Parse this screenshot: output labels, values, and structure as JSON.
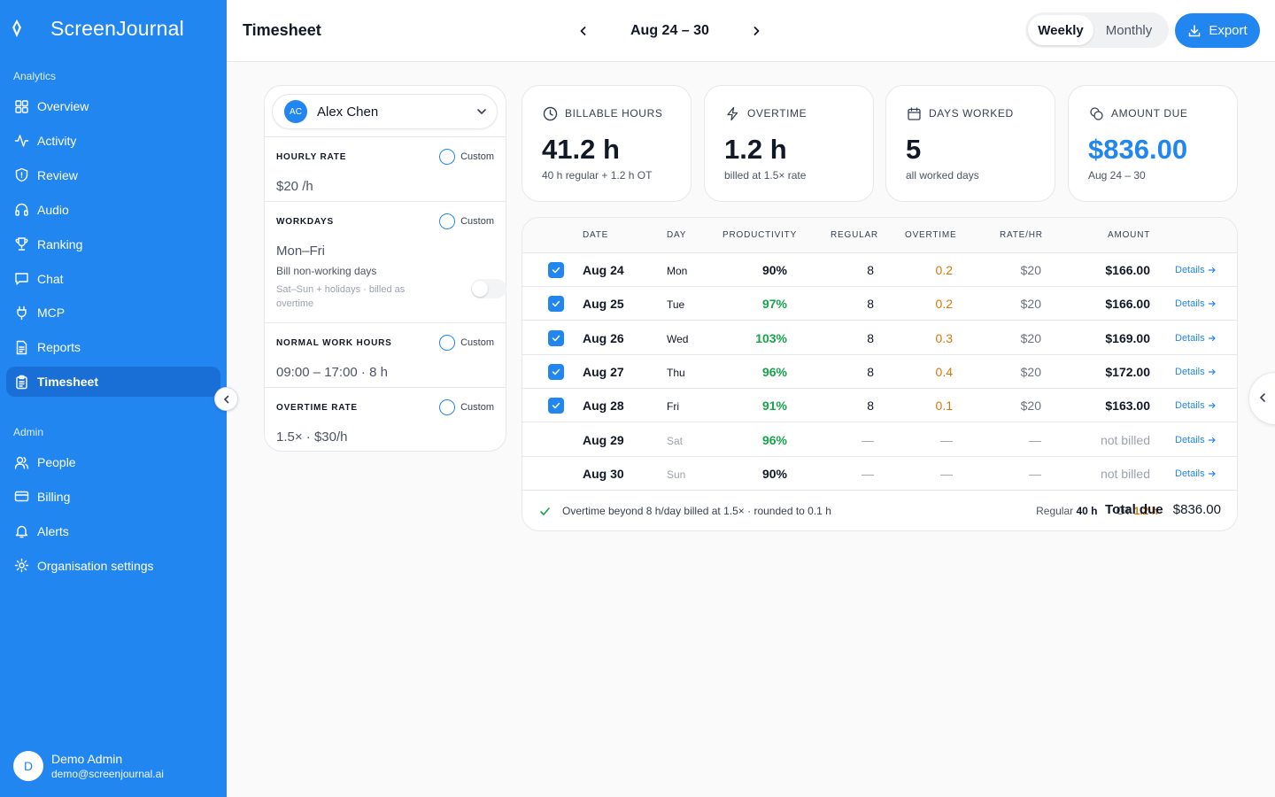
{
  "app": {
    "name": "ScreenJournal"
  },
  "sidebar": {
    "analytics_label": "Analytics",
    "analytics_items": [
      {
        "label": "Overview",
        "icon": "grid-icon"
      },
      {
        "label": "Activity",
        "icon": "activity-icon"
      },
      {
        "label": "Review",
        "icon": "shield-icon"
      },
      {
        "label": "Audio",
        "icon": "headphones-icon"
      },
      {
        "label": "Ranking",
        "icon": "trophy-icon"
      },
      {
        "label": "Chat",
        "icon": "chat-icon"
      },
      {
        "label": "MCP",
        "icon": "plug-icon"
      },
      {
        "label": "Reports",
        "icon": "report-icon"
      },
      {
        "label": "Timesheet",
        "icon": "clipboard-icon",
        "active": true
      }
    ],
    "admin_label": "Admin",
    "admin_items": [
      {
        "label": "People",
        "icon": "people-icon"
      },
      {
        "label": "Billing",
        "icon": "card-icon"
      },
      {
        "label": "Alerts",
        "icon": "bell-icon"
      },
      {
        "label": "Organisation settings",
        "icon": "gear-icon"
      }
    ],
    "user": {
      "initial": "D",
      "name": "Demo Admin",
      "email": "demo@screenjournal.ai"
    }
  },
  "header": {
    "title": "Timesheet",
    "range": "Aug 24 – 30",
    "view_options": [
      "Weekly",
      "Monthly"
    ],
    "selected_view": "Weekly",
    "export_label": "Export"
  },
  "settings": {
    "employee": {
      "initials": "AC",
      "name": "Alex Chen"
    },
    "custom_label": "Custom",
    "hourly_rate": {
      "label": "HOURLY RATE",
      "value": "$20 /h"
    },
    "workdays": {
      "label": "WORKDAYS",
      "value": "Mon–Fri"
    },
    "bill_nonworking": {
      "title": "Bill non-working days",
      "subtitle": "Sat–Sun + holidays · billed as overtime",
      "enabled": false
    },
    "normal_hours": {
      "label": "NORMAL WORK HOURS",
      "value": "09:00 – 17:00 · 8 h"
    },
    "overtime_rate": {
      "label": "OVERTIME RATE",
      "value": "1.5× · $30/h"
    }
  },
  "stats": [
    {
      "label": "BILLABLE HOURS",
      "value": "41.2 h",
      "sub": "40 h regular + 1.2 h OT",
      "icon": "clock-icon"
    },
    {
      "label": "OVERTIME",
      "value": "1.2 h",
      "sub": "billed at 1.5× rate",
      "icon": "bolt-icon"
    },
    {
      "label": "DAYS WORKED",
      "value": "5",
      "sub": "all worked days",
      "icon": "calendar-icon"
    },
    {
      "label": "AMOUNT DUE",
      "value": "$836.00",
      "sub": "Aug 24 – 30",
      "icon": "coins-icon",
      "accent": "#2186f0"
    }
  ],
  "table": {
    "columns": [
      "DATE",
      "DAY",
      "PRODUCTIVITY",
      "REGULAR",
      "OVERTIME",
      "RATE/HR",
      "AMOUNT"
    ],
    "details_label": "Details",
    "rows": [
      {
        "checked": true,
        "date": "Aug 24",
        "day": "Mon",
        "productivity": "90%",
        "prod_high": false,
        "regular": "8",
        "overtime": "0.2",
        "rate": "$20",
        "amount": "$166.00"
      },
      {
        "checked": true,
        "date": "Aug 25",
        "day": "Tue",
        "productivity": "97%",
        "prod_high": true,
        "regular": "8",
        "overtime": "0.2",
        "rate": "$20",
        "amount": "$166.00"
      },
      {
        "checked": true,
        "date": "Aug 26",
        "day": "Wed",
        "productivity": "103%",
        "prod_high": true,
        "regular": "8",
        "overtime": "0.3",
        "rate": "$20",
        "amount": "$169.00"
      },
      {
        "checked": true,
        "date": "Aug 27",
        "day": "Thu",
        "productivity": "96%",
        "prod_high": true,
        "regular": "8",
        "overtime": "0.4",
        "rate": "$20",
        "amount": "$172.00"
      },
      {
        "checked": true,
        "date": "Aug 28",
        "day": "Fri",
        "productivity": "91%",
        "prod_high": true,
        "regular": "8",
        "overtime": "0.1",
        "rate": "$20",
        "amount": "$163.00"
      },
      {
        "checked": false,
        "date": "Aug 29",
        "day": "Sat",
        "productivity": "96%",
        "prod_high": true,
        "regular": "—",
        "overtime": "—",
        "rate": "—",
        "amount": "not billed"
      },
      {
        "checked": false,
        "date": "Aug 30",
        "day": "Sun",
        "productivity": "90%",
        "prod_high": false,
        "regular": "—",
        "overtime": "—",
        "rate": "—",
        "amount": "not billed"
      }
    ],
    "footer": {
      "note": "Overtime beyond 8 h/day billed at 1.5× · rounded to 0.1 h",
      "regular_label": "Regular",
      "regular_value": "40 h",
      "ot_label": "OT",
      "ot_value": "1.2 h",
      "total_label": "Total due",
      "total_value": "$836.00"
    }
  },
  "colors": {
    "brand": "#2186f0",
    "positive": "#16a34a",
    "overtime": "#d97706"
  }
}
